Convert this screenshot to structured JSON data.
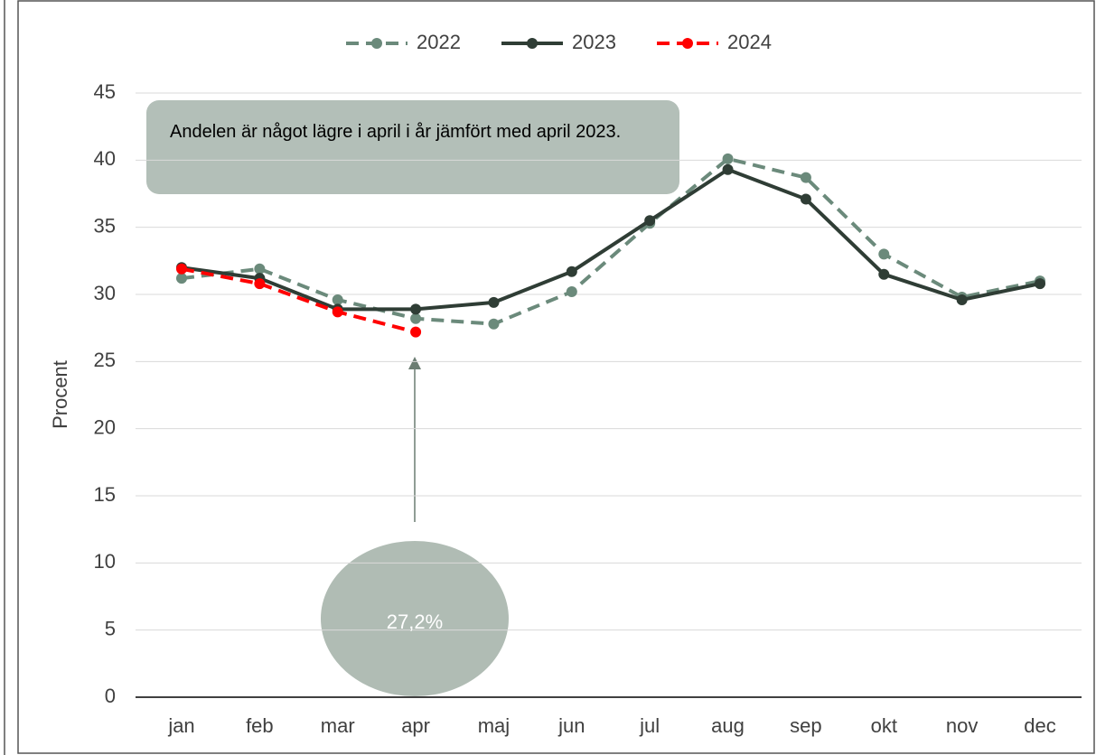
{
  "chart_data": {
    "type": "line",
    "y_label": "Procent",
    "annotation": "Andelen är något lägre i april i år jämfört med april 2023.",
    "categories": [
      "jan",
      "feb",
      "mar",
      "apr",
      "maj",
      "jun",
      "jul",
      "aug",
      "sep",
      "okt",
      "nov",
      "dec"
    ],
    "series": [
      {
        "name": "2022",
        "color": "#6b8a7b",
        "dash": true,
        "values": [
          31.2,
          31.9,
          29.6,
          28.2,
          27.8,
          30.2,
          35.3,
          40.1,
          38.7,
          33.0,
          29.8,
          31.0
        ]
      },
      {
        "name": "2023",
        "color": "#2f3d35",
        "dash": false,
        "values": [
          32.0,
          31.2,
          28.9,
          28.9,
          29.4,
          31.7,
          35.5,
          39.3,
          37.1,
          31.5,
          29.6,
          30.8
        ]
      },
      {
        "name": "2024",
        "color": "#ff0000",
        "dash": true,
        "values": [
          31.9,
          30.8,
          28.7,
          27.2,
          null,
          null,
          null,
          null,
          null,
          null,
          null,
          null
        ],
        "value_labels": [
          null,
          null,
          null,
          "27,2%",
          null,
          null,
          null,
          null,
          null,
          null,
          null,
          null
        ]
      }
    ],
    "ylim": [
      0,
      45
    ],
    "yticks": [
      0,
      5,
      10,
      15,
      20,
      25,
      30,
      35,
      40,
      45
    ],
    "grid": true,
    "legend": "top"
  }
}
